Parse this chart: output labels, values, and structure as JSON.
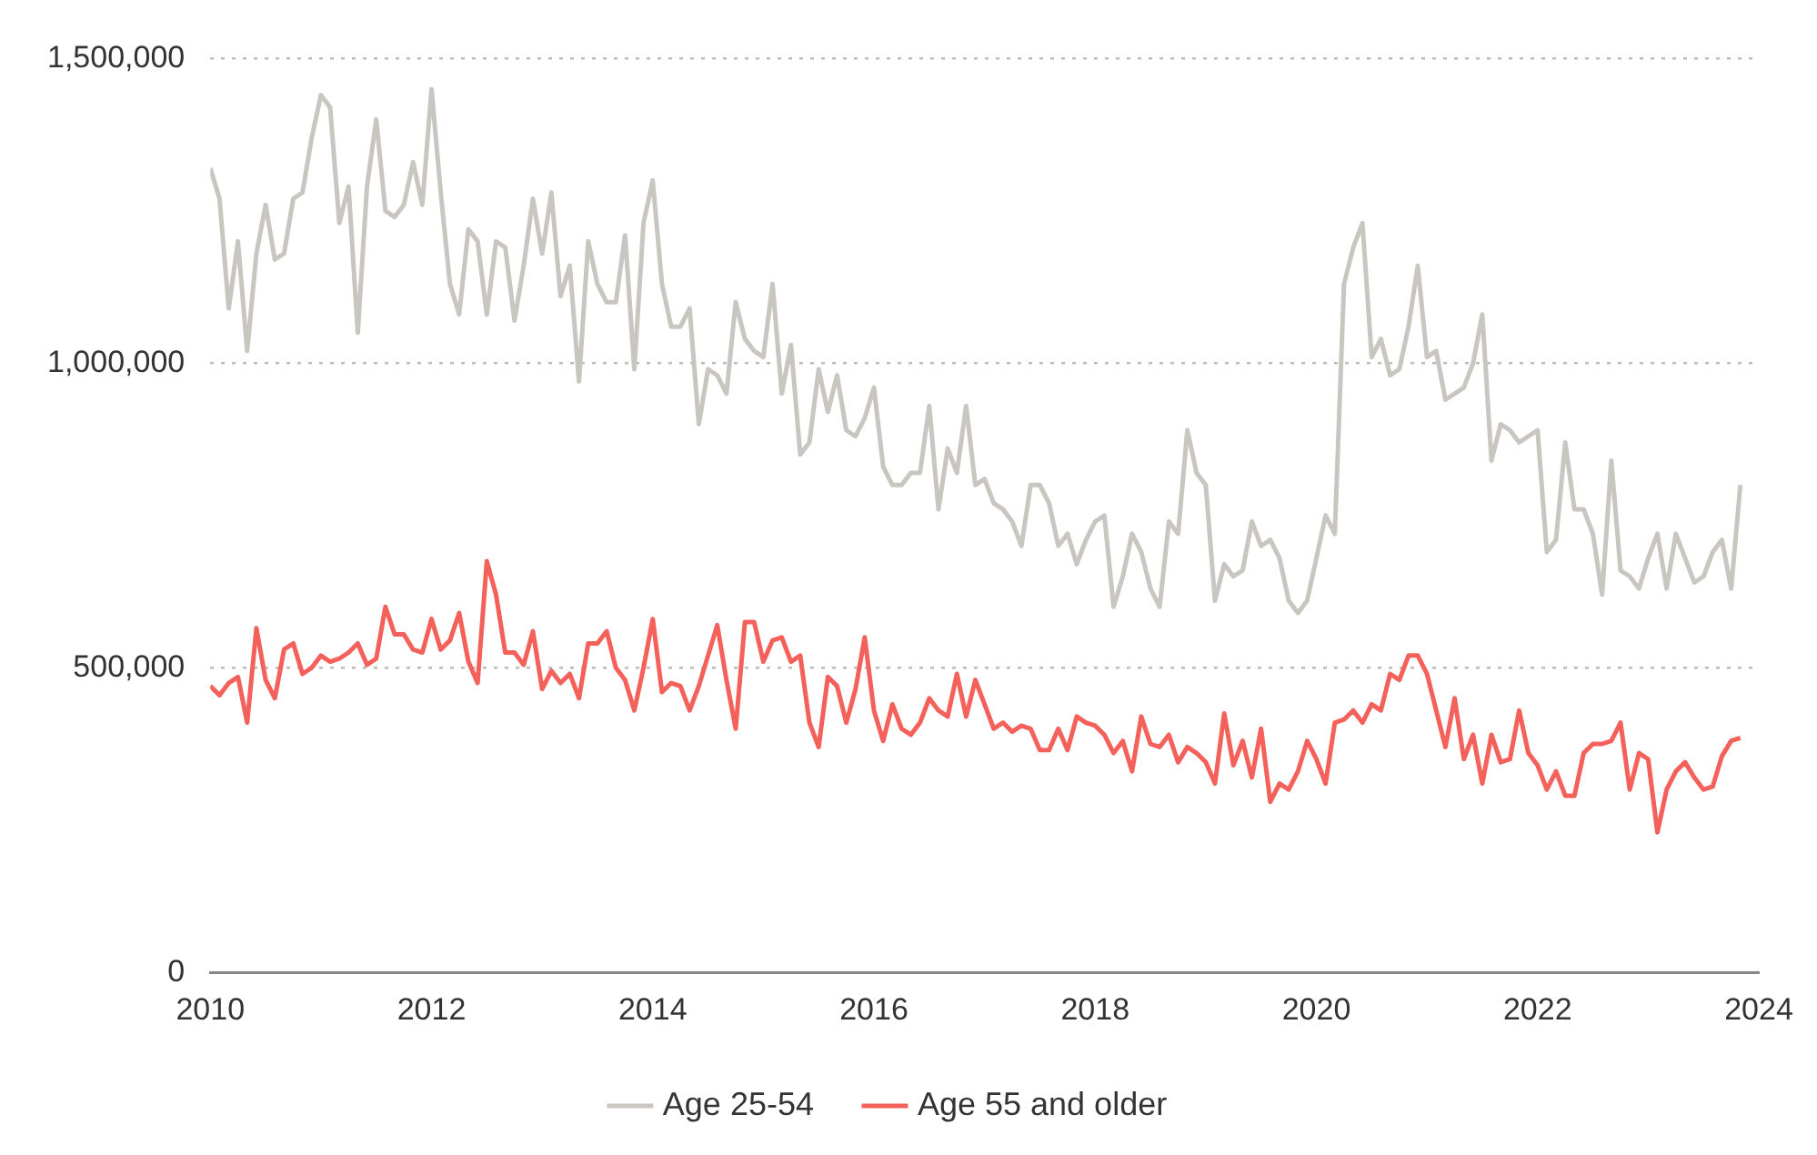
{
  "chart_data": {
    "type": "line",
    "x": [
      "2010-01",
      "2010-02",
      "2010-03",
      "2010-04",
      "2010-05",
      "2010-06",
      "2010-07",
      "2010-08",
      "2010-09",
      "2010-10",
      "2010-11",
      "2010-12",
      "2011-01",
      "2011-02",
      "2011-03",
      "2011-04",
      "2011-05",
      "2011-06",
      "2011-07",
      "2011-08",
      "2011-09",
      "2011-10",
      "2011-11",
      "2011-12",
      "2012-01",
      "2012-02",
      "2012-03",
      "2012-04",
      "2012-05",
      "2012-06",
      "2012-07",
      "2012-08",
      "2012-09",
      "2012-10",
      "2012-11",
      "2012-12",
      "2013-01",
      "2013-02",
      "2013-03",
      "2013-04",
      "2013-05",
      "2013-06",
      "2013-07",
      "2013-08",
      "2013-09",
      "2013-10",
      "2013-11",
      "2013-12",
      "2014-01",
      "2014-02",
      "2014-03",
      "2014-04",
      "2014-05",
      "2014-06",
      "2014-07",
      "2014-08",
      "2014-09",
      "2014-10",
      "2014-11",
      "2014-12",
      "2015-01",
      "2015-02",
      "2015-03",
      "2015-04",
      "2015-05",
      "2015-06",
      "2015-07",
      "2015-08",
      "2015-09",
      "2015-10",
      "2015-11",
      "2015-12",
      "2016-01",
      "2016-02",
      "2016-03",
      "2016-04",
      "2016-05",
      "2016-06",
      "2016-07",
      "2016-08",
      "2016-09",
      "2016-10",
      "2016-11",
      "2016-12",
      "2017-01",
      "2017-02",
      "2017-03",
      "2017-04",
      "2017-05",
      "2017-06",
      "2017-07",
      "2017-08",
      "2017-09",
      "2017-10",
      "2017-11",
      "2017-12",
      "2018-01",
      "2018-02",
      "2018-03",
      "2018-04",
      "2018-05",
      "2018-06",
      "2018-07",
      "2018-08",
      "2018-09",
      "2018-10",
      "2018-11",
      "2018-12",
      "2019-01",
      "2019-02",
      "2019-03",
      "2019-04",
      "2019-05",
      "2019-06",
      "2019-07",
      "2019-08",
      "2019-09",
      "2019-10",
      "2019-11",
      "2019-12",
      "2020-01",
      "2020-02",
      "2020-03",
      "2020-04",
      "2020-05",
      "2020-06",
      "2020-07",
      "2020-08",
      "2020-09",
      "2020-10",
      "2020-11",
      "2020-12",
      "2021-01",
      "2021-02",
      "2021-03",
      "2021-04",
      "2021-05",
      "2021-06",
      "2021-07",
      "2021-08",
      "2021-09",
      "2021-10",
      "2021-11",
      "2021-12",
      "2022-01",
      "2022-02",
      "2022-03",
      "2022-04",
      "2022-05",
      "2022-06",
      "2022-07",
      "2022-08",
      "2022-09",
      "2022-10",
      "2022-11",
      "2022-12",
      "2023-01",
      "2023-02",
      "2023-03",
      "2023-04",
      "2023-05",
      "2023-06",
      "2023-07",
      "2023-08",
      "2023-09",
      "2023-10",
      "2023-11"
    ],
    "series": [
      {
        "name": "Age 25-54",
        "color": "#c9c6c1",
        "values": [
          1320000,
          1270000,
          1090000,
          1200000,
          1020000,
          1180000,
          1260000,
          1170000,
          1180000,
          1270000,
          1280000,
          1370000,
          1440000,
          1420000,
          1230000,
          1290000,
          1050000,
          1290000,
          1400000,
          1250000,
          1240000,
          1260000,
          1330000,
          1260000,
          1450000,
          1280000,
          1130000,
          1080000,
          1220000,
          1200000,
          1080000,
          1200000,
          1190000,
          1070000,
          1160000,
          1270000,
          1180000,
          1280000,
          1110000,
          1160000,
          970000,
          1200000,
          1130000,
          1100000,
          1100000,
          1210000,
          990000,
          1230000,
          1300000,
          1130000,
          1060000,
          1060000,
          1090000,
          900000,
          990000,
          980000,
          950000,
          1100000,
          1040000,
          1020000,
          1010000,
          1130000,
          950000,
          1030000,
          850000,
          870000,
          990000,
          920000,
          980000,
          890000,
          880000,
          910000,
          960000,
          830000,
          800000,
          800000,
          820000,
          820000,
          930000,
          760000,
          860000,
          820000,
          930000,
          800000,
          810000,
          770000,
          760000,
          740000,
          700000,
          800000,
          800000,
          770000,
          700000,
          720000,
          670000,
          710000,
          740000,
          750000,
          600000,
          650000,
          720000,
          690000,
          630000,
          600000,
          740000,
          720000,
          890000,
          820000,
          800000,
          610000,
          670000,
          650000,
          660000,
          740000,
          700000,
          710000,
          680000,
          610000,
          590000,
          610000,
          680000,
          750000,
          720000,
          1130000,
          1190000,
          1230000,
          1010000,
          1040000,
          980000,
          990000,
          1060000,
          1160000,
          1010000,
          1020000,
          940000,
          950000,
          960000,
          1000000,
          1080000,
          840000,
          900000,
          890000,
          870000,
          880000,
          890000,
          690000,
          710000,
          870000,
          760000,
          760000,
          720000,
          620000,
          840000,
          660000,
          650000,
          630000,
          680000,
          720000,
          630000,
          720000,
          680000,
          640000,
          650000,
          690000,
          710000,
          630000,
          800000
        ]
      },
      {
        "name": "Age 55 and older",
        "color": "#f4605a",
        "values": [
          470000,
          455000,
          475000,
          485000,
          410000,
          565000,
          480000,
          450000,
          530000,
          540000,
          490000,
          500000,
          520000,
          510000,
          515000,
          525000,
          540000,
          505000,
          515000,
          600000,
          555000,
          555000,
          530000,
          525000,
          580000,
          530000,
          545000,
          590000,
          510000,
          475000,
          675000,
          620000,
          525000,
          525000,
          505000,
          560000,
          465000,
          495000,
          475000,
          490000,
          450000,
          540000,
          540000,
          560000,
          500000,
          480000,
          430000,
          500000,
          580000,
          460000,
          475000,
          470000,
          430000,
          470000,
          520000,
          570000,
          480000,
          400000,
          575000,
          575000,
          510000,
          545000,
          550000,
          510000,
          520000,
          410000,
          370000,
          485000,
          470000,
          410000,
          465000,
          550000,
          430000,
          380000,
          440000,
          400000,
          390000,
          410000,
          450000,
          430000,
          420000,
          490000,
          420000,
          480000,
          440000,
          400000,
          410000,
          395000,
          405000,
          400000,
          365000,
          365000,
          400000,
          365000,
          420000,
          410000,
          405000,
          390000,
          360000,
          380000,
          330000,
          420000,
          375000,
          370000,
          390000,
          345000,
          370000,
          360000,
          345000,
          310000,
          425000,
          340000,
          380000,
          320000,
          400000,
          280000,
          310000,
          300000,
          330000,
          380000,
          350000,
          310000,
          410000,
          415000,
          430000,
          410000,
          440000,
          430000,
          490000,
          480000,
          520000,
          520000,
          490000,
          430000,
          370000,
          450000,
          350000,
          390000,
          310000,
          390000,
          345000,
          350000,
          430000,
          360000,
          340000,
          300000,
          330000,
          290000,
          290000,
          360000,
          375000,
          375000,
          380000,
          410000,
          300000,
          360000,
          350000,
          230000,
          300000,
          330000,
          345000,
          320000,
          300000,
          305000,
          355000,
          380000,
          385000
        ]
      }
    ],
    "xlim": [
      "2010",
      "2024"
    ],
    "xticks": [
      "2010",
      "2012",
      "2014",
      "2016",
      "2018",
      "2020",
      "2022",
      "2024"
    ],
    "ylim": [
      0,
      1500000
    ],
    "yticks": [
      0,
      {
        "value": 500000,
        "label": "500,000"
      },
      {
        "value": 1000000,
        "label": "1,000,000"
      },
      {
        "value": 1500000,
        "label": "1,500,000"
      }
    ],
    "grid": "y",
    "legend": "bottom",
    "marker": "none",
    "line_style": "solid"
  }
}
